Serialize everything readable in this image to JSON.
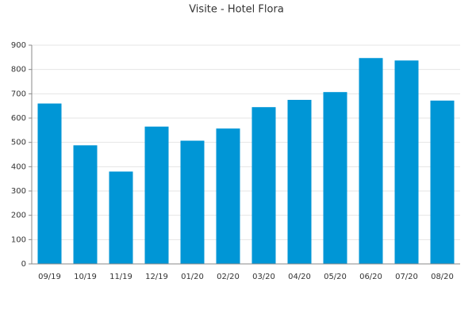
{
  "chart_data": {
    "type": "bar",
    "title": "Visite - Hotel Flora",
    "categories": [
      "09/19",
      "10/19",
      "11/19",
      "12/19",
      "01/20",
      "02/20",
      "03/20",
      "04/20",
      "05/20",
      "06/20",
      "07/20",
      "08/20"
    ],
    "values": [
      660,
      488,
      380,
      565,
      507,
      557,
      645,
      675,
      707,
      847,
      837,
      672
    ],
    "color": "#0096d6",
    "ylim": [
      0,
      900
    ],
    "yticks": [
      0,
      100,
      200,
      300,
      400,
      500,
      600,
      700,
      800,
      900
    ],
    "grid": true
  }
}
